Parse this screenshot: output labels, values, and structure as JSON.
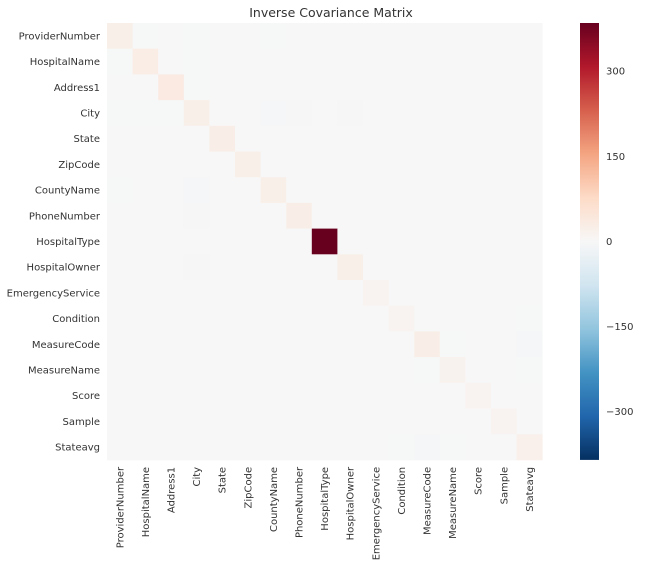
{
  "chart_data": {
    "type": "heatmap",
    "title": "Inverse Covariance Matrix",
    "xlabel": "",
    "ylabel": "",
    "rows": [
      "ProviderNumber",
      "HospitalName",
      "Address1",
      "City",
      "State",
      "ZipCode",
      "CountyName",
      "PhoneNumber",
      "HospitalType",
      "HospitalOwner",
      "EmergencyService",
      "Condition",
      "MeasureCode",
      "MeasureName",
      "Score",
      "Sample",
      "Stateavg"
    ],
    "columns": [
      "ProviderNumber",
      "HospitalName",
      "Address1",
      "City",
      "State",
      "ZipCode",
      "CountyName",
      "PhoneNumber",
      "HospitalType",
      "HospitalOwner",
      "EmergencyService",
      "Condition",
      "MeasureCode",
      "MeasureName",
      "Score",
      "Sample",
      "Stateavg"
    ],
    "values": [
      [
        22,
        -2,
        -1,
        -2,
        0,
        0,
        -2,
        -1,
        0,
        0,
        0,
        0,
        0,
        0,
        0,
        0,
        0
      ],
      [
        -2,
        28,
        -1,
        -2,
        0,
        0,
        -1,
        -1,
        0,
        0,
        0,
        0,
        0,
        0,
        0,
        0,
        0
      ],
      [
        -1,
        -1,
        35,
        -2,
        0,
        0,
        -1,
        -1,
        0,
        0,
        0,
        0,
        0,
        0,
        0,
        0,
        0
      ],
      [
        -2,
        -2,
        -2,
        22,
        0,
        0,
        -5,
        -3,
        0,
        -3,
        0,
        0,
        0,
        0,
        0,
        0,
        0
      ],
      [
        0,
        0,
        0,
        0,
        25,
        0,
        0,
        0,
        0,
        0,
        0,
        0,
        0,
        0,
        0,
        0,
        0
      ],
      [
        0,
        0,
        0,
        0,
        0,
        22,
        0,
        0,
        0,
        0,
        0,
        0,
        0,
        0,
        0,
        0,
        0
      ],
      [
        -2,
        -1,
        -1,
        -5,
        0,
        0,
        22,
        -1,
        0,
        0,
        0,
        0,
        0,
        0,
        0,
        0,
        0
      ],
      [
        -1,
        -1,
        -1,
        -3,
        0,
        0,
        -1,
        25,
        0,
        0,
        0,
        0,
        0,
        0,
        0,
        0,
        0
      ],
      [
        0,
        0,
        0,
        0,
        0,
        0,
        0,
        0,
        385,
        0,
        0,
        0,
        0,
        0,
        0,
        0,
        0
      ],
      [
        0,
        0,
        0,
        -3,
        0,
        0,
        0,
        0,
        0,
        22,
        0,
        0,
        0,
        0,
        0,
        0,
        0
      ],
      [
        0,
        0,
        0,
        0,
        0,
        0,
        0,
        0,
        0,
        0,
        12,
        0,
        0,
        0,
        0,
        0,
        0
      ],
      [
        0,
        0,
        0,
        0,
        0,
        0,
        0,
        0,
        0,
        0,
        0,
        12,
        0,
        0,
        0,
        0,
        -2
      ],
      [
        0,
        0,
        0,
        0,
        0,
        0,
        0,
        0,
        0,
        0,
        0,
        0,
        25,
        -2,
        0,
        0,
        -5
      ],
      [
        0,
        0,
        0,
        0,
        0,
        0,
        0,
        0,
        0,
        0,
        0,
        0,
        -2,
        15,
        0,
        0,
        -2
      ],
      [
        0,
        0,
        0,
        0,
        0,
        0,
        0,
        0,
        0,
        0,
        0,
        0,
        0,
        0,
        10,
        0,
        0
      ],
      [
        0,
        0,
        0,
        0,
        0,
        0,
        0,
        0,
        0,
        0,
        0,
        0,
        0,
        0,
        0,
        12,
        0
      ],
      [
        0,
        0,
        0,
        0,
        0,
        0,
        0,
        0,
        0,
        0,
        0,
        -2,
        -5,
        -2,
        0,
        0,
        20
      ]
    ],
    "colorbar": {
      "colormap": "RdBu_r",
      "vmin": -385,
      "vmax": 385,
      "ticks": [
        300,
        150,
        0,
        -150,
        -300
      ],
      "tick_labels": [
        "300",
        "150",
        "0",
        "−150",
        "−300"
      ]
    },
    "grid": false
  }
}
